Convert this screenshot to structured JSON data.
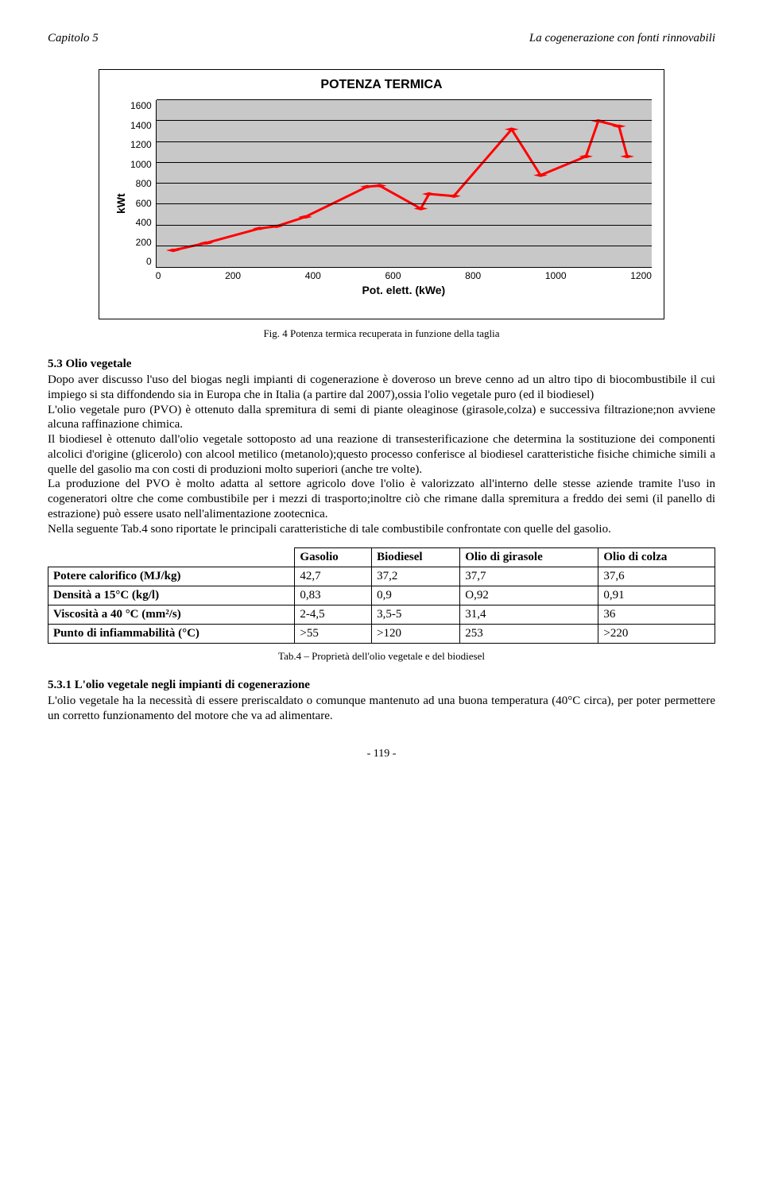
{
  "header": {
    "left": "Capitolo 5",
    "right": "La cogenerazione con fonti rinnovabili"
  },
  "chart": {
    "type": "line",
    "title": "POTENZA TERMICA",
    "ylabel": "kWt",
    "xlabel": "Pot. elett. (kWe)",
    "xlim": [
      0,
      1200
    ],
    "ylim": [
      0,
      1600
    ],
    "xtick_step": 200,
    "ytick_step": 200,
    "xticks": [
      "0",
      "200",
      "400",
      "600",
      "800",
      "1000",
      "1200"
    ],
    "yticks": [
      "1600",
      "1400",
      "1200",
      "1000",
      "800",
      "600",
      "400",
      "200",
      "0"
    ],
    "line_color": "#ff0000",
    "line_width": 3,
    "marker_color": "#ff0000",
    "marker_size": 5,
    "background_color": "#c8c8c8",
    "grid_color": "#000000",
    "points_x": [
      40,
      120,
      250,
      290,
      360,
      510,
      540,
      640,
      660,
      720,
      860,
      930,
      1040,
      1070,
      1120,
      1140
    ],
    "points_y": [
      160,
      230,
      370,
      390,
      480,
      770,
      780,
      560,
      700,
      680,
      1320,
      880,
      1060,
      1400,
      1350,
      1060
    ]
  },
  "fig_caption": "Fig. 4 Potenza termica recuperata in funzione della taglia",
  "section": {
    "number_title": "5.3 Olio vegetale",
    "paragraph1": "Dopo aver discusso l'uso del biogas negli impianti di cogenerazione è doveroso un breve cenno ad un altro tipo di biocombustibile il cui impiego si sta diffondendo sia in Europa che in Italia (a partire dal 2007),ossia l'olio vegetale puro (ed il biodiesel)",
    "paragraph2": "L'olio vegetale puro (PVO) è ottenuto dalla spremitura di semi di piante oleaginose (girasole,colza) e successiva filtrazione;non avviene alcuna raffinazione chimica.",
    "paragraph3": "Il biodiesel è ottenuto dall'olio vegetale sottoposto ad una reazione di transesterificazione che determina la sostituzione dei componenti alcolici d'origine (glicerolo) con alcool metilico (metanolo);questo processo conferisce al biodiesel caratteristiche fisiche chimiche simili a quelle del gasolio ma con costi di produzioni molto superiori (anche tre volte).",
    "paragraph4": "La produzione del PVO è molto adatta al settore agricolo dove l'olio è valorizzato all'interno delle stesse aziende tramite l'uso in cogeneratori oltre che come combustibile per i mezzi di trasporto;inoltre ciò che rimane dalla spremitura a freddo dei semi (il panello di estrazione) può essere usato nell'alimentazione zootecnica.",
    "paragraph5": "Nella seguente Tab.4 sono riportate le principali caratteristiche di tale combustibile confrontate con quelle del gasolio."
  },
  "table": {
    "columns": [
      "",
      "Gasolio",
      "Biodiesel",
      "Olio di girasole",
      "Olio di colza"
    ],
    "rows": [
      [
        "Potere calorifico (MJ/kg)",
        "42,7",
        "37,2",
        "37,7",
        "37,6"
      ],
      [
        "Densità a 15°C (kg/l)",
        "0,83",
        "0,9",
        "O,92",
        "0,91"
      ],
      [
        "Viscosità a 40 °C (mm²/s)",
        "2-4,5",
        "3,5-5",
        "31,4",
        "36"
      ],
      [
        "Punto di infiammabilità (°C)",
        ">55",
        ">120",
        "253",
        ">220"
      ]
    ]
  },
  "tab_caption": "Tab.4 – Proprietà dell'olio vegetale e del biodiesel",
  "subsection": {
    "title": "5.3.1 L'olio vegetale negli impianti di cogenerazione",
    "text": "L'olio vegetale ha la necessità di essere preriscaldato o comunque mantenuto ad una buona temperatura (40°C circa), per poter permettere un corretto funzionamento del motore che va ad alimentare."
  },
  "pagenum": "- 119 -"
}
